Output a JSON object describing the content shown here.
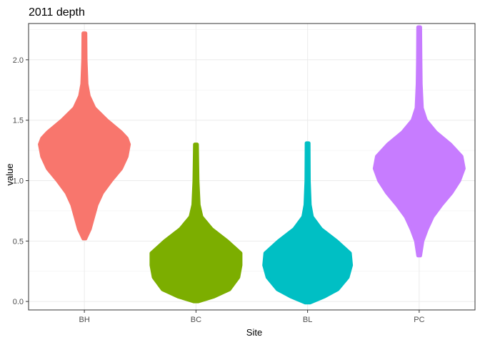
{
  "chart_data": {
    "type": "violin",
    "title": "2011 depth",
    "xlabel": "Site",
    "ylabel": "value",
    "categories": [
      "BH",
      "BC",
      "BL",
      "PC"
    ],
    "ylim": [
      -0.07,
      2.3
    ],
    "yticks": [
      0.0,
      0.5,
      1.0,
      1.5,
      2.0
    ],
    "ytick_labels": [
      "0.0",
      "0.5",
      "1.0",
      "1.5",
      "2.0"
    ],
    "grid": true,
    "legend": "none",
    "series": [
      {
        "category": "BH",
        "color": "#F8766D",
        "profile": [
          {
            "y": 0.52,
            "half_width": 0.01
          },
          {
            "y": 0.6,
            "half_width": 0.05
          },
          {
            "y": 0.7,
            "half_width": 0.08
          },
          {
            "y": 0.8,
            "half_width": 0.11
          },
          {
            "y": 0.9,
            "half_width": 0.16
          },
          {
            "y": 1.0,
            "half_width": 0.24
          },
          {
            "y": 1.1,
            "half_width": 0.33
          },
          {
            "y": 1.2,
            "half_width": 0.38
          },
          {
            "y": 1.3,
            "half_width": 0.4
          },
          {
            "y": 1.35,
            "half_width": 0.38
          },
          {
            "y": 1.4,
            "half_width": 0.33
          },
          {
            "y": 1.5,
            "half_width": 0.2
          },
          {
            "y": 1.6,
            "half_width": 0.09
          },
          {
            "y": 1.7,
            "half_width": 0.04
          },
          {
            "y": 1.8,
            "half_width": 0.02
          },
          {
            "y": 2.0,
            "half_width": 0.012
          },
          {
            "y": 2.22,
            "half_width": 0.01
          }
        ]
      },
      {
        "category": "BC",
        "color": "#7CAE00",
        "profile": [
          {
            "y": 0.0,
            "half_width": 0.02
          },
          {
            "y": 0.04,
            "half_width": 0.16
          },
          {
            "y": 0.1,
            "half_width": 0.3
          },
          {
            "y": 0.2,
            "half_width": 0.38
          },
          {
            "y": 0.3,
            "half_width": 0.4
          },
          {
            "y": 0.4,
            "half_width": 0.4
          },
          {
            "y": 0.5,
            "half_width": 0.28
          },
          {
            "y": 0.6,
            "half_width": 0.14
          },
          {
            "y": 0.7,
            "half_width": 0.05
          },
          {
            "y": 0.8,
            "half_width": 0.025
          },
          {
            "y": 1.0,
            "half_width": 0.015
          },
          {
            "y": 1.3,
            "half_width": 0.01
          }
        ]
      },
      {
        "category": "BL",
        "color": "#00BFC4",
        "profile": [
          {
            "y": -0.01,
            "half_width": 0.02
          },
          {
            "y": 0.04,
            "half_width": 0.15
          },
          {
            "y": 0.1,
            "half_width": 0.27
          },
          {
            "y": 0.2,
            "half_width": 0.36
          },
          {
            "y": 0.3,
            "half_width": 0.39
          },
          {
            "y": 0.4,
            "half_width": 0.38
          },
          {
            "y": 0.5,
            "half_width": 0.26
          },
          {
            "y": 0.6,
            "half_width": 0.12
          },
          {
            "y": 0.7,
            "half_width": 0.04
          },
          {
            "y": 0.8,
            "half_width": 0.02
          },
          {
            "y": 1.0,
            "half_width": 0.012
          },
          {
            "y": 1.31,
            "half_width": 0.01
          }
        ]
      },
      {
        "category": "PC",
        "color": "#C77CFF",
        "profile": [
          {
            "y": 0.38,
            "half_width": 0.01
          },
          {
            "y": 0.5,
            "half_width": 0.03
          },
          {
            "y": 0.6,
            "half_width": 0.07
          },
          {
            "y": 0.7,
            "half_width": 0.12
          },
          {
            "y": 0.8,
            "half_width": 0.2
          },
          {
            "y": 0.9,
            "half_width": 0.29
          },
          {
            "y": 1.0,
            "half_width": 0.36
          },
          {
            "y": 1.1,
            "half_width": 0.4
          },
          {
            "y": 1.2,
            "half_width": 0.38
          },
          {
            "y": 1.3,
            "half_width": 0.28
          },
          {
            "y": 1.4,
            "half_width": 0.15
          },
          {
            "y": 1.5,
            "half_width": 0.06
          },
          {
            "y": 1.6,
            "half_width": 0.025
          },
          {
            "y": 1.8,
            "half_width": 0.015
          },
          {
            "y": 2.0,
            "half_width": 0.012
          },
          {
            "y": 2.27,
            "half_width": 0.01
          }
        ]
      }
    ]
  }
}
